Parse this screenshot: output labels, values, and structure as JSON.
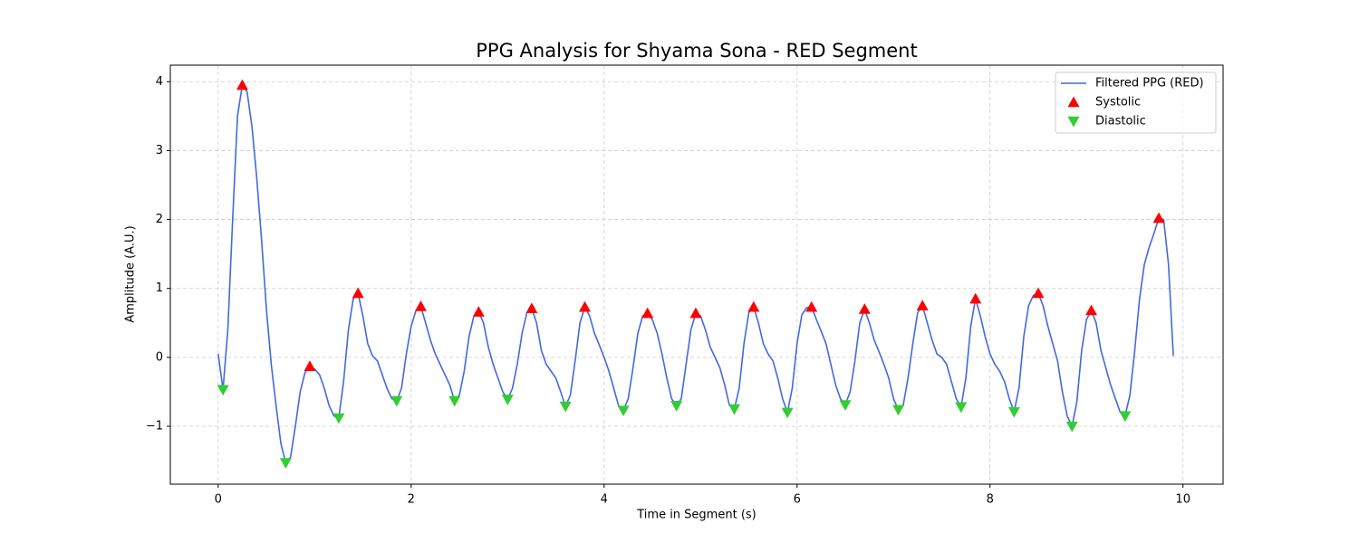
{
  "chart_data": {
    "type": "line",
    "title": "PPG Analysis for Shyama Sona - RED Segment",
    "x_label": "Time in Segment (s)",
    "y_label": "Amplitude (A.U.)",
    "xlim": [
      -0.496,
      10.416
    ],
    "ylim": [
      -1.84,
      4.24
    ],
    "xticks": [
      0,
      2,
      4,
      6,
      8,
      10
    ],
    "yticks": [
      {
        "value": -1,
        "label": "−1"
      },
      0,
      1,
      2,
      3,
      4
    ],
    "grid": true,
    "legend": "upper right",
    "series": [
      {
        "name": "Filtered PPG (RED)",
        "color": "#4169e1",
        "marker": "none",
        "x": [
          0,
          0.05,
          0.1,
          0.15,
          0.2,
          0.25,
          0.3,
          0.35,
          0.4,
          0.45,
          0.5,
          0.55,
          0.6,
          0.65,
          0.7,
          0.75,
          0.8,
          0.85,
          0.9,
          0.95,
          1,
          1.05,
          1.1,
          1.15,
          1.2,
          1.25,
          1.3,
          1.35,
          1.4,
          1.45,
          1.5,
          1.55,
          1.6,
          1.65,
          1.7,
          1.75,
          1.8,
          1.85,
          1.9,
          1.95,
          2,
          2.05,
          2.1,
          2.15,
          2.2,
          2.25,
          2.3,
          2.35,
          2.4,
          2.45,
          2.5,
          2.55,
          2.6,
          2.65,
          2.7,
          2.75,
          2.8,
          2.85,
          2.9,
          2.95,
          3,
          3.05,
          3.1,
          3.15,
          3.2,
          3.25,
          3.3,
          3.35,
          3.4,
          3.45,
          3.5,
          3.55,
          3.6,
          3.65,
          3.7,
          3.75,
          3.8,
          3.85,
          3.9,
          3.95,
          4,
          4.05,
          4.1,
          4.15,
          4.2,
          4.25,
          4.3,
          4.35,
          4.4,
          4.45,
          4.5,
          4.55,
          4.6,
          4.65,
          4.7,
          4.75,
          4.8,
          4.85,
          4.9,
          4.95,
          5,
          5.05,
          5.1,
          5.15,
          5.2,
          5.25,
          5.3,
          5.35,
          5.4,
          5.45,
          5.5,
          5.55,
          5.6,
          5.65,
          5.7,
          5.75,
          5.8,
          5.85,
          5.9,
          5.95,
          6,
          6.05,
          6.1,
          6.15,
          6.2,
          6.25,
          6.3,
          6.35,
          6.4,
          6.45,
          6.5,
          6.55,
          6.6,
          6.65,
          6.7,
          6.75,
          6.8,
          6.85,
          6.9,
          6.95,
          7,
          7.05,
          7.1,
          7.15,
          7.2,
          7.25,
          7.3,
          7.35,
          7.4,
          7.45,
          7.5,
          7.55,
          7.6,
          7.65,
          7.7,
          7.75,
          7.8,
          7.85,
          7.9,
          7.95,
          8,
          8.05,
          8.1,
          8.15,
          8.2,
          8.25,
          8.3,
          8.35,
          8.4,
          8.45,
          8.5,
          8.55,
          8.6,
          8.65,
          8.7,
          8.75,
          8.8,
          8.85,
          8.9,
          8.95,
          9,
          9.05,
          9.1,
          9.15,
          9.2,
          9.25,
          9.3,
          9.35,
          9.4,
          9.45,
          9.5,
          9.55,
          9.6,
          9.65,
          9.7,
          9.75,
          9.8,
          9.85,
          9.9
        ],
        "values": [
          0.05,
          -0.47,
          0.4,
          2.0,
          3.5,
          3.95,
          3.85,
          3.35,
          2.6,
          1.7,
          0.7,
          -0.1,
          -0.7,
          -1.25,
          -1.53,
          -1.45,
          -1.0,
          -0.5,
          -0.22,
          -0.13,
          -0.17,
          -0.25,
          -0.45,
          -0.7,
          -0.85,
          -0.88,
          -0.35,
          0.4,
          0.85,
          0.93,
          0.6,
          0.2,
          0.02,
          -0.05,
          -0.25,
          -0.45,
          -0.6,
          -0.63,
          -0.45,
          0.05,
          0.45,
          0.68,
          0.74,
          0.5,
          0.25,
          0.05,
          -0.1,
          -0.25,
          -0.4,
          -0.63,
          -0.55,
          -0.2,
          0.3,
          0.6,
          0.66,
          0.5,
          0.15,
          -0.1,
          -0.3,
          -0.5,
          -0.61,
          -0.45,
          -0.1,
          0.35,
          0.65,
          0.71,
          0.5,
          0.1,
          -0.1,
          -0.2,
          -0.3,
          -0.5,
          -0.71,
          -0.55,
          -0.05,
          0.5,
          0.73,
          0.6,
          0.35,
          0.18,
          0.0,
          -0.2,
          -0.45,
          -0.7,
          -0.77,
          -0.6,
          -0.15,
          0.35,
          0.6,
          0.64,
          0.55,
          0.35,
          0.05,
          -0.3,
          -0.6,
          -0.7,
          -0.6,
          -0.1,
          0.4,
          0.64,
          0.6,
          0.4,
          0.15,
          0.0,
          -0.15,
          -0.4,
          -0.7,
          -0.75,
          -0.45,
          0.2,
          0.65,
          0.73,
          0.5,
          0.2,
          0.05,
          -0.05,
          -0.3,
          -0.6,
          -0.8,
          -0.45,
          0.2,
          0.62,
          0.72,
          0.73,
          0.55,
          0.38,
          0.2,
          -0.1,
          -0.4,
          -0.6,
          -0.69,
          -0.5,
          -0.05,
          0.5,
          0.7,
          0.5,
          0.25,
          0.08,
          -0.1,
          -0.3,
          -0.6,
          -0.76,
          -0.7,
          -0.3,
          0.2,
          0.65,
          0.75,
          0.5,
          0.25,
          0.05,
          0.0,
          -0.1,
          -0.35,
          -0.6,
          -0.72,
          -0.3,
          0.45,
          0.85,
          0.6,
          0.3,
          0.05,
          -0.1,
          -0.2,
          -0.35,
          -0.6,
          -0.79,
          -0.45,
          0.3,
          0.75,
          0.9,
          0.93,
          0.75,
          0.45,
          0.2,
          -0.05,
          -0.5,
          -0.85,
          -1.0,
          -0.65,
          0.1,
          0.55,
          0.68,
          0.5,
          0.1,
          -0.15,
          -0.4,
          -0.6,
          -0.8,
          -0.85,
          -0.55,
          0.1,
          0.85,
          1.35,
          1.6,
          1.8,
          2.02,
          2.0,
          1.35,
          0.02
        ]
      },
      {
        "name": "Systolic",
        "color": "#ff0000",
        "marker": "triangle-up",
        "x": [
          0.25,
          0.95,
          1.45,
          2.1,
          2.7,
          3.25,
          3.8,
          4.45,
          4.95,
          5.55,
          6.15,
          6.7,
          7.3,
          7.85,
          8.5,
          9.05,
          9.75
        ],
        "values": [
          3.95,
          -0.13,
          0.93,
          0.74,
          0.66,
          0.71,
          0.73,
          0.64,
          0.64,
          0.73,
          0.73,
          0.7,
          0.75,
          0.85,
          0.93,
          0.68,
          2.02
        ]
      },
      {
        "name": "Diastolic",
        "color": "#32cd32",
        "marker": "triangle-down",
        "x": [
          0.05,
          0.7,
          1.25,
          1.85,
          2.45,
          3.0,
          3.6,
          4.2,
          4.75,
          5.35,
          5.9,
          6.5,
          7.05,
          7.7,
          8.25,
          8.85,
          9.4
        ],
        "values": [
          -0.47,
          -1.53,
          -0.88,
          -0.63,
          -0.63,
          -0.61,
          -0.71,
          -0.77,
          -0.7,
          -0.75,
          -0.8,
          -0.69,
          -0.76,
          -0.72,
          -0.79,
          -1.0,
          -0.85
        ]
      }
    ]
  }
}
